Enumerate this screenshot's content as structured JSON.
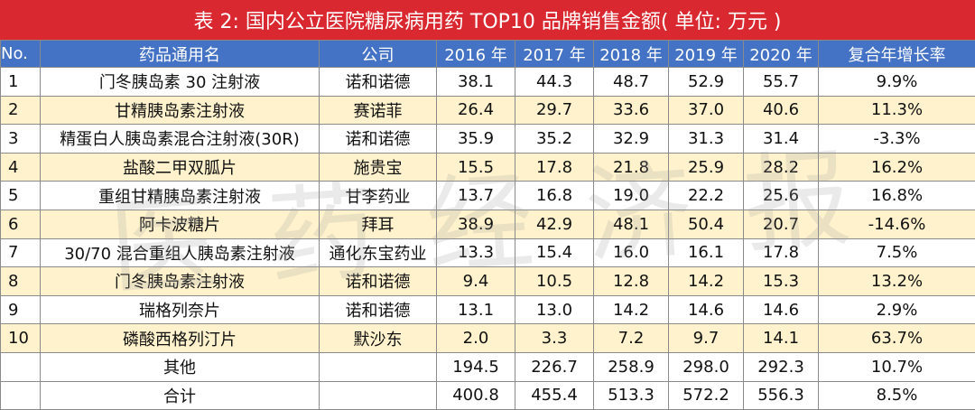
{
  "title": "表 2: 国内公立医院糖尿病用药 TOP10 品牌销售金额( 单位: 万元 )",
  "watermark": "医药经济报",
  "colors": {
    "title_bg": "#d9282f",
    "header_bg": "#4472c4",
    "alt_row_bg": "#fff2cc"
  },
  "chart_data": {
    "type": "table",
    "columns": [
      "No.",
      "药品通用名",
      "公司",
      "2016 年",
      "2017 年",
      "2018 年",
      "2019 年",
      "2020 年",
      "复合年增长率"
    ],
    "rows": [
      [
        "1",
        "门冬胰岛素 30 注射液",
        "诺和诺德",
        "38.1",
        "44.3",
        "48.7",
        "52.9",
        "55.7",
        "9.9%"
      ],
      [
        "2",
        "甘精胰岛素注射液",
        "赛诺菲",
        "26.4",
        "29.7",
        "33.6",
        "37.0",
        "40.6",
        "11.3%"
      ],
      [
        "3",
        "精蛋白人胰岛素混合注射液(30R)",
        "诺和诺德",
        "35.9",
        "35.2",
        "32.9",
        "31.3",
        "31.4",
        "-3.3%"
      ],
      [
        "4",
        "盐酸二甲双胍片",
        "施贵宝",
        "15.5",
        "17.8",
        "21.8",
        "25.9",
        "28.2",
        "16.2%"
      ],
      [
        "5",
        "重组甘精胰岛素注射液",
        "甘李药业",
        "13.7",
        "16.8",
        "19.0",
        "22.2",
        "25.6",
        "16.8%"
      ],
      [
        "6",
        "阿卡波糖片",
        "拜耳",
        "38.9",
        "42.9",
        "48.1",
        "50.4",
        "20.7",
        "-14.6%"
      ],
      [
        "7",
        "30/70 混合重组人胰岛素注射液",
        "通化东宝药业",
        "13.3",
        "15.4",
        "16.0",
        "16.1",
        "17.8",
        "7.5%"
      ],
      [
        "8",
        "门冬胰岛素注射液",
        "诺和诺德",
        "9.4",
        "10.5",
        "12.8",
        "14.2",
        "15.3",
        "13.2%"
      ],
      [
        "9",
        "瑞格列奈片",
        "诺和诺德",
        "13.1",
        "13.0",
        "14.2",
        "14.6",
        "14.6",
        "2.9%"
      ],
      [
        "10",
        "磷酸西格列汀片",
        "默沙东",
        "2.0",
        "3.3",
        "7.2",
        "9.7",
        "14.1",
        "63.7%"
      ],
      [
        "",
        "其他",
        "",
        "194.5",
        "226.7",
        "258.9",
        "298.0",
        "292.3",
        "10.7%"
      ],
      [
        "",
        "合计",
        "",
        "400.8",
        "455.4",
        "513.3",
        "572.2",
        "556.3",
        "8.5%"
      ]
    ]
  }
}
